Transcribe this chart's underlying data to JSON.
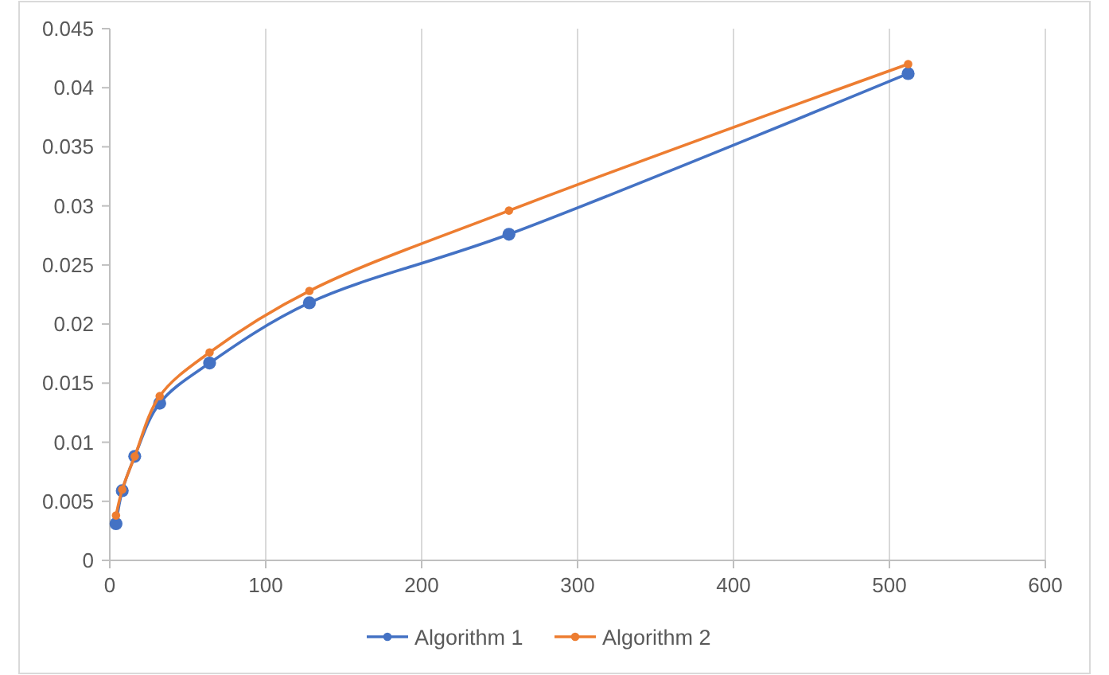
{
  "chart_data": {
    "type": "line",
    "x": [
      4,
      8,
      16,
      32,
      64,
      128,
      256,
      512
    ],
    "series": [
      {
        "name": "Algorithm 1",
        "color": "#4472c4",
        "values": [
          0.0031,
          0.0059,
          0.0088,
          0.0133,
          0.0167,
          0.0218,
          0.0276,
          0.0412
        ]
      },
      {
        "name": "Algorithm 2",
        "color": "#ed7d31",
        "values": [
          0.0038,
          0.006,
          0.0088,
          0.0139,
          0.0176,
          0.0228,
          0.0296,
          0.042
        ]
      }
    ],
    "xlim": [
      0,
      600
    ],
    "xticks": [
      0,
      100,
      200,
      300,
      400,
      500,
      600
    ],
    "ylim": [
      0,
      0.045
    ],
    "yticks": [
      0,
      0.005,
      0.01,
      0.015,
      0.02,
      0.025,
      0.03,
      0.035,
      0.04,
      0.045
    ],
    "grid": "x",
    "legend": "bottom",
    "marker": "circle"
  }
}
